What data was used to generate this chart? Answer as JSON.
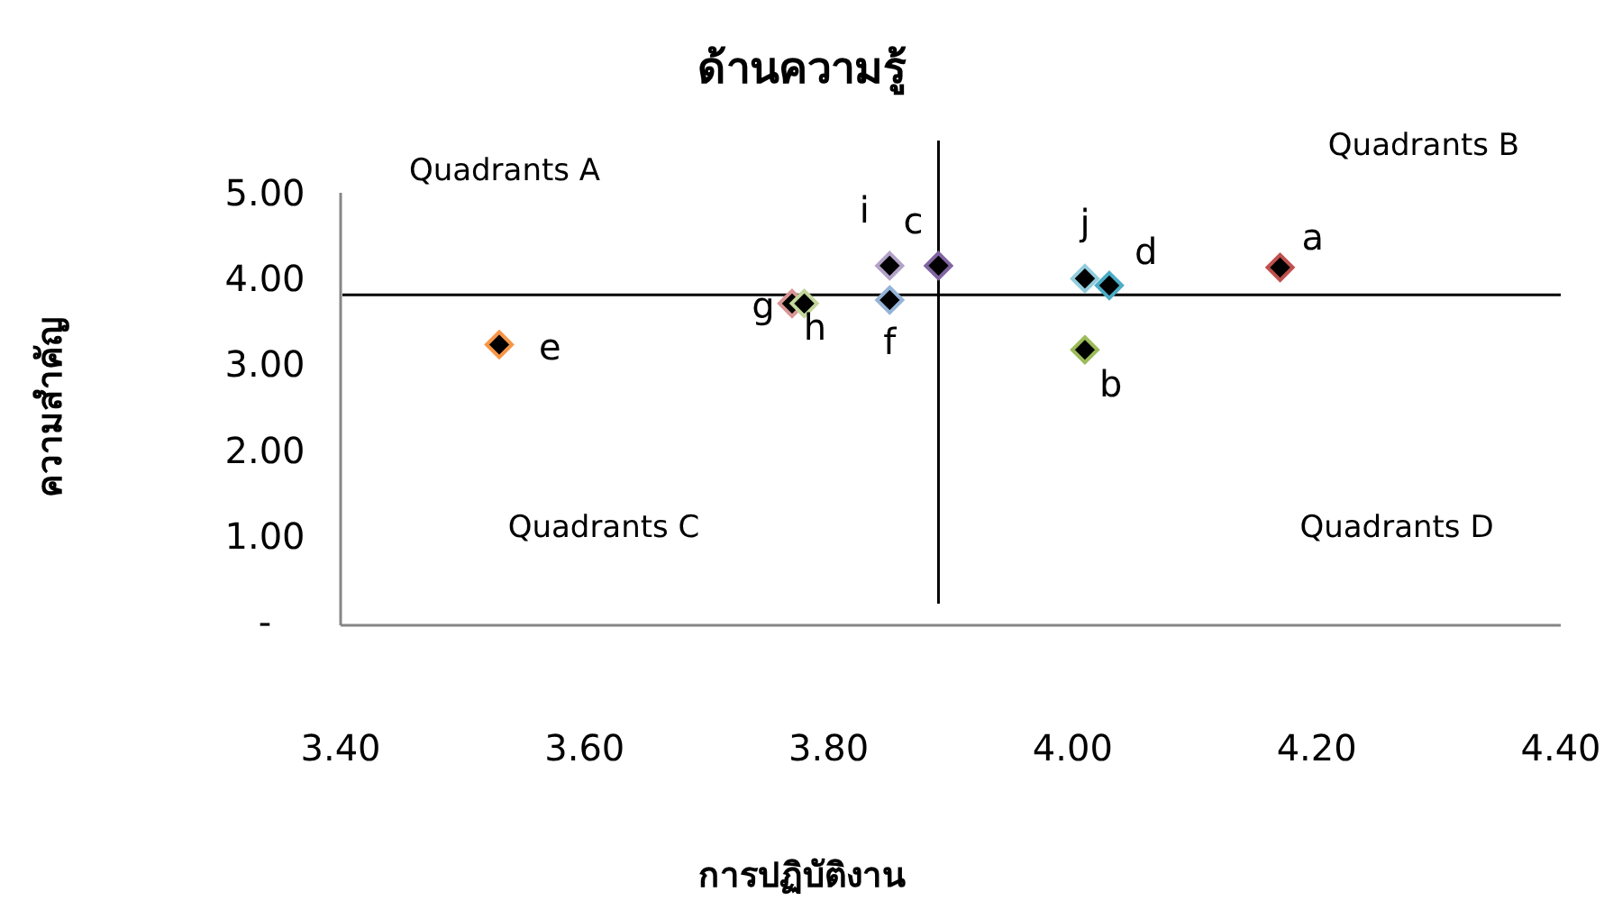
{
  "chart_data": {
    "type": "scatter",
    "title": "ด้านความรู้",
    "xlabel": "การปฏิบัติงาน",
    "ylabel": "ความสำคัญ",
    "xlim": [
      3.4,
      4.4
    ],
    "ylim": [
      0,
      5
    ],
    "xticks": [
      {
        "value": 3.4,
        "label": "3.40"
      },
      {
        "value": 3.6,
        "label": "3.60"
      },
      {
        "value": 3.8,
        "label": "3.80"
      },
      {
        "value": 4.0,
        "label": "4.00"
      },
      {
        "value": 4.2,
        "label": "4.20"
      },
      {
        "value": 4.4,
        "label": "4.40"
      }
    ],
    "yticks": [
      {
        "value": 0,
        "label": "-"
      },
      {
        "value": 1,
        "label": "1.00"
      },
      {
        "value": 2,
        "label": "2.00"
      },
      {
        "value": 3,
        "label": "3.00"
      },
      {
        "value": 4,
        "label": "4.00"
      },
      {
        "value": 5,
        "label": "5.00"
      }
    ],
    "grid": false,
    "marker": "diamond",
    "ref_lines": [
      {
        "axis": "x",
        "value": 3.89,
        "color": "#000000"
      },
      {
        "axis": "y",
        "value": 3.81,
        "color": "#000000"
      }
    ],
    "annotations": [
      "Quadrants A",
      "Quadrants B",
      "Quadrants C",
      "Quadrants D"
    ],
    "series": [
      {
        "name": "a",
        "color": "#c0504d",
        "x": [
          4.17
        ],
        "values": [
          4.13
        ]
      },
      {
        "name": "b",
        "color": "#9bbb59",
        "x": [
          4.01
        ],
        "values": [
          3.17
        ]
      },
      {
        "name": "c",
        "color": "#8064a2",
        "x": [
          3.89
        ],
        "values": [
          4.15
        ]
      },
      {
        "name": "d",
        "color": "#4bacc6",
        "x": [
          4.03
        ],
        "values": [
          3.92
        ]
      },
      {
        "name": "e",
        "color": "#f79646",
        "x": [
          3.53
        ],
        "values": [
          3.23
        ]
      },
      {
        "name": "f",
        "color": "#95b3d7",
        "x": [
          3.85
        ],
        "values": [
          3.75
        ]
      },
      {
        "name": "g",
        "color": "#d99694",
        "x": [
          3.77
        ],
        "values": [
          3.71
        ]
      },
      {
        "name": "h",
        "color": "#c3d69b",
        "x": [
          3.78
        ],
        "values": [
          3.71
        ]
      },
      {
        "name": "i",
        "color": "#b3a2c7",
        "x": [
          3.85
        ],
        "values": [
          4.15
        ]
      },
      {
        "name": "j",
        "color": "#93cddd",
        "x": [
          4.01
        ],
        "values": [
          4.0
        ]
      }
    ]
  }
}
